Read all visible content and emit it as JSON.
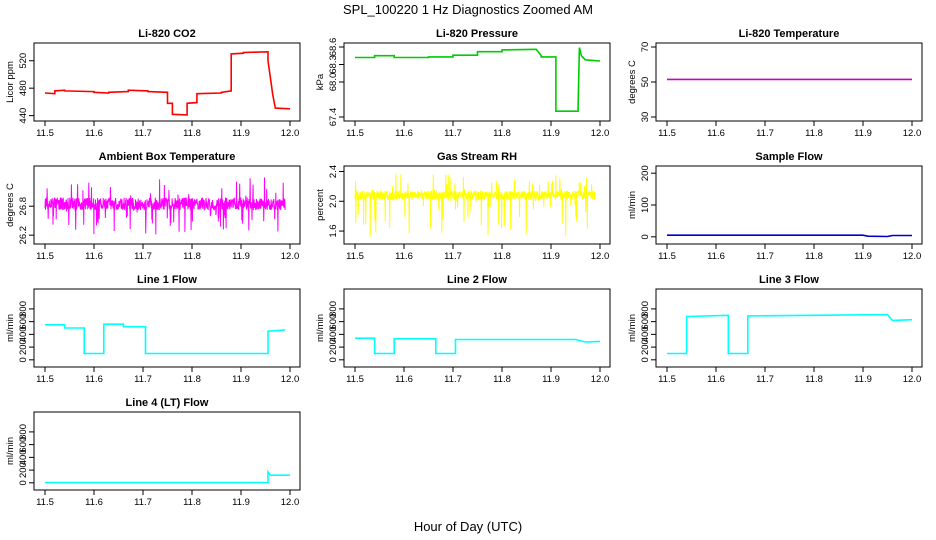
{
  "title": "SPL_100220  1 Hz Diagnostics Zoomed AM",
  "xlabel": "Hour of Day (UTC)",
  "chart_data": [
    {
      "type": "line",
      "title": "Li-820 CO2",
      "ylabel": "Licor ppm",
      "color": "#ff0000",
      "xlim": [
        11.5,
        12.0
      ],
      "xticks": [
        "11.5",
        "11.6",
        "11.7",
        "11.8",
        "11.9",
        "12.0"
      ],
      "ylim": [
        438,
        540
      ],
      "yticks": [
        "440",
        "480",
        "520"
      ],
      "x": [
        11.5,
        11.52,
        11.52,
        11.54,
        11.54,
        11.6,
        11.6,
        11.63,
        11.63,
        11.67,
        11.67,
        11.71,
        11.71,
        11.75,
        11.75,
        11.76,
        11.76,
        11.79,
        11.79,
        11.81,
        11.81,
        11.86,
        11.86,
        11.88,
        11.88,
        11.905,
        11.905,
        11.955,
        11.955,
        11.965,
        11.97,
        12.0
      ],
      "y": [
        473,
        472,
        476,
        477,
        476,
        475,
        474,
        473,
        474,
        475,
        477,
        476,
        475,
        474,
        458,
        458,
        442,
        441,
        458,
        459,
        472,
        473,
        474,
        476,
        530,
        531,
        532,
        533,
        520,
        470,
        451,
        450
      ]
    },
    {
      "type": "line",
      "title": "Li-820 Pressure",
      "ylabel": "kPa",
      "color": "#00cc00",
      "xlim": [
        11.5,
        12.0
      ],
      "xticks": [
        "11.5",
        "11.6",
        "11.7",
        "11.8",
        "11.9",
        "12.0"
      ],
      "ylim": [
        67.4,
        68.6
      ],
      "yticks": [
        "67.4",
        "68.0",
        "68.3",
        "68.6"
      ],
      "x": [
        11.5,
        11.54,
        11.54,
        11.58,
        11.58,
        11.65,
        11.65,
        11.7,
        11.7,
        11.75,
        11.75,
        11.8,
        11.8,
        11.87,
        11.87,
        11.88,
        11.88,
        11.91,
        11.91,
        11.95,
        11.955,
        11.958,
        11.962,
        11.97,
        12.0
      ],
      "y": [
        68.42,
        68.42,
        68.45,
        68.45,
        68.42,
        68.42,
        68.43,
        68.43,
        68.46,
        68.46,
        68.52,
        68.52,
        68.55,
        68.56,
        68.56,
        68.45,
        68.43,
        68.43,
        67.5,
        67.5,
        67.5,
        68.59,
        68.45,
        68.38,
        68.36
      ]
    },
    {
      "type": "line",
      "title": "Li-820 Temperature",
      "ylabel": "degrees C",
      "color": "#cc00cc",
      "xlim": [
        11.5,
        12.0
      ],
      "xticks": [
        "11.5",
        "11.6",
        "11.7",
        "11.8",
        "11.9",
        "12.0"
      ],
      "ylim": [
        30,
        70
      ],
      "yticks": [
        "30",
        "50",
        "70"
      ],
      "x": [
        11.5,
        12.0
      ],
      "y": [
        51.5,
        51.5
      ]
    },
    {
      "type": "line",
      "title": "Ambient Box Temperature",
      "ylabel": "degrees C",
      "color": "#ff00ff",
      "xlim": [
        11.5,
        12.0
      ],
      "xticks": [
        "11.5",
        "11.6",
        "11.7",
        "11.8",
        "11.9",
        "12.0"
      ],
      "ylim": [
        26.1,
        27.55
      ],
      "yticks": [
        "26.2",
        "26.8"
      ],
      "noise": {
        "center": 26.85,
        "band_low": 26.72,
        "band_high": 26.98,
        "spike_low": 26.2,
        "spike_high": 27.4
      }
    },
    {
      "type": "line",
      "title": "Gas Stream RH",
      "ylabel": "percent",
      "color": "#ffff00",
      "xlim": [
        11.5,
        12.0
      ],
      "xticks": [
        "11.5",
        "11.6",
        "11.7",
        "11.8",
        "11.9",
        "12.0"
      ],
      "ylim": [
        1.48,
        2.42
      ],
      "yticks": [
        "1.6",
        "2.0",
        "2.4"
      ],
      "noise": {
        "center": 2.08,
        "band_low": 2.02,
        "band_high": 2.14,
        "spike_low": 1.52,
        "spike_high": 2.4
      }
    },
    {
      "type": "line",
      "title": "Sample Flow",
      "ylabel": "ml/min",
      "color": "#0000cc",
      "xlim": [
        11.5,
        12.0
      ],
      "xticks": [
        "11.5",
        "11.6",
        "11.7",
        "11.8",
        "11.9",
        "12.0"
      ],
      "ylim": [
        -10,
        210
      ],
      "yticks": [
        "0",
        "100",
        "200"
      ],
      "x": [
        11.5,
        11.9,
        11.91,
        11.95,
        11.96,
        12.0
      ],
      "y": [
        5,
        5,
        2,
        1,
        4,
        4
      ]
    },
    {
      "type": "line",
      "title": "Line 1 Flow",
      "ylabel": "ml/min",
      "color": "#00ffff",
      "xlim": [
        11.5,
        12.0
      ],
      "xticks": [
        "11.5",
        "11.6",
        "11.7",
        "11.8",
        "11.9",
        "12.0"
      ],
      "ylim": [
        -50,
        1050
      ],
      "yticks": [
        "0",
        "200",
        "400",
        "600",
        "800"
      ],
      "x": [
        11.5,
        11.54,
        11.54,
        11.58,
        11.58,
        11.62,
        11.62,
        11.66,
        11.66,
        11.705,
        11.705,
        11.955,
        11.955,
        11.99
      ],
      "y": [
        550,
        550,
        500,
        500,
        100,
        100,
        560,
        560,
        520,
        520,
        100,
        100,
        450,
        470
      ]
    },
    {
      "type": "line",
      "title": "Line 2 Flow",
      "ylabel": "ml/min",
      "color": "#00ffff",
      "xlim": [
        11.5,
        12.0
      ],
      "xticks": [
        "11.5",
        "11.6",
        "11.7",
        "11.8",
        "11.9",
        "12.0"
      ],
      "ylim": [
        -50,
        1050
      ],
      "yticks": [
        "0",
        "200",
        "400",
        "600",
        "800"
      ],
      "x": [
        11.5,
        11.54,
        11.54,
        11.58,
        11.58,
        11.665,
        11.665,
        11.705,
        11.705,
        11.95,
        11.97,
        12.0
      ],
      "y": [
        340,
        340,
        100,
        100,
        330,
        330,
        100,
        100,
        320,
        320,
        280,
        290
      ]
    },
    {
      "type": "line",
      "title": "Line 3 Flow",
      "ylabel": "ml/min",
      "color": "#00ffff",
      "xlim": [
        11.5,
        12.0
      ],
      "xticks": [
        "11.5",
        "11.6",
        "11.7",
        "11.8",
        "11.9",
        "12.0"
      ],
      "ylim": [
        -50,
        1050
      ],
      "yticks": [
        "0",
        "200",
        "400",
        "600",
        "800"
      ],
      "x": [
        11.5,
        11.54,
        11.54,
        11.625,
        11.625,
        11.665,
        11.665,
        11.95,
        11.96,
        12.0
      ],
      "y": [
        100,
        100,
        680,
        700,
        100,
        100,
        690,
        710,
        620,
        630
      ]
    },
    {
      "type": "line",
      "title": "Line 4 (LT) Flow",
      "ylabel": "ml/min",
      "color": "#00ffff",
      "xlim": [
        11.5,
        12.0
      ],
      "xticks": [
        "11.5",
        "11.6",
        "11.7",
        "11.8",
        "11.9",
        "12.0"
      ],
      "ylim": [
        -50,
        1050
      ],
      "yticks": [
        "0",
        "200",
        "400",
        "600",
        "800"
      ],
      "x": [
        11.5,
        11.955,
        11.955,
        11.96,
        11.97,
        12.0
      ],
      "y": [
        5,
        5,
        170,
        120,
        120,
        120
      ]
    }
  ]
}
